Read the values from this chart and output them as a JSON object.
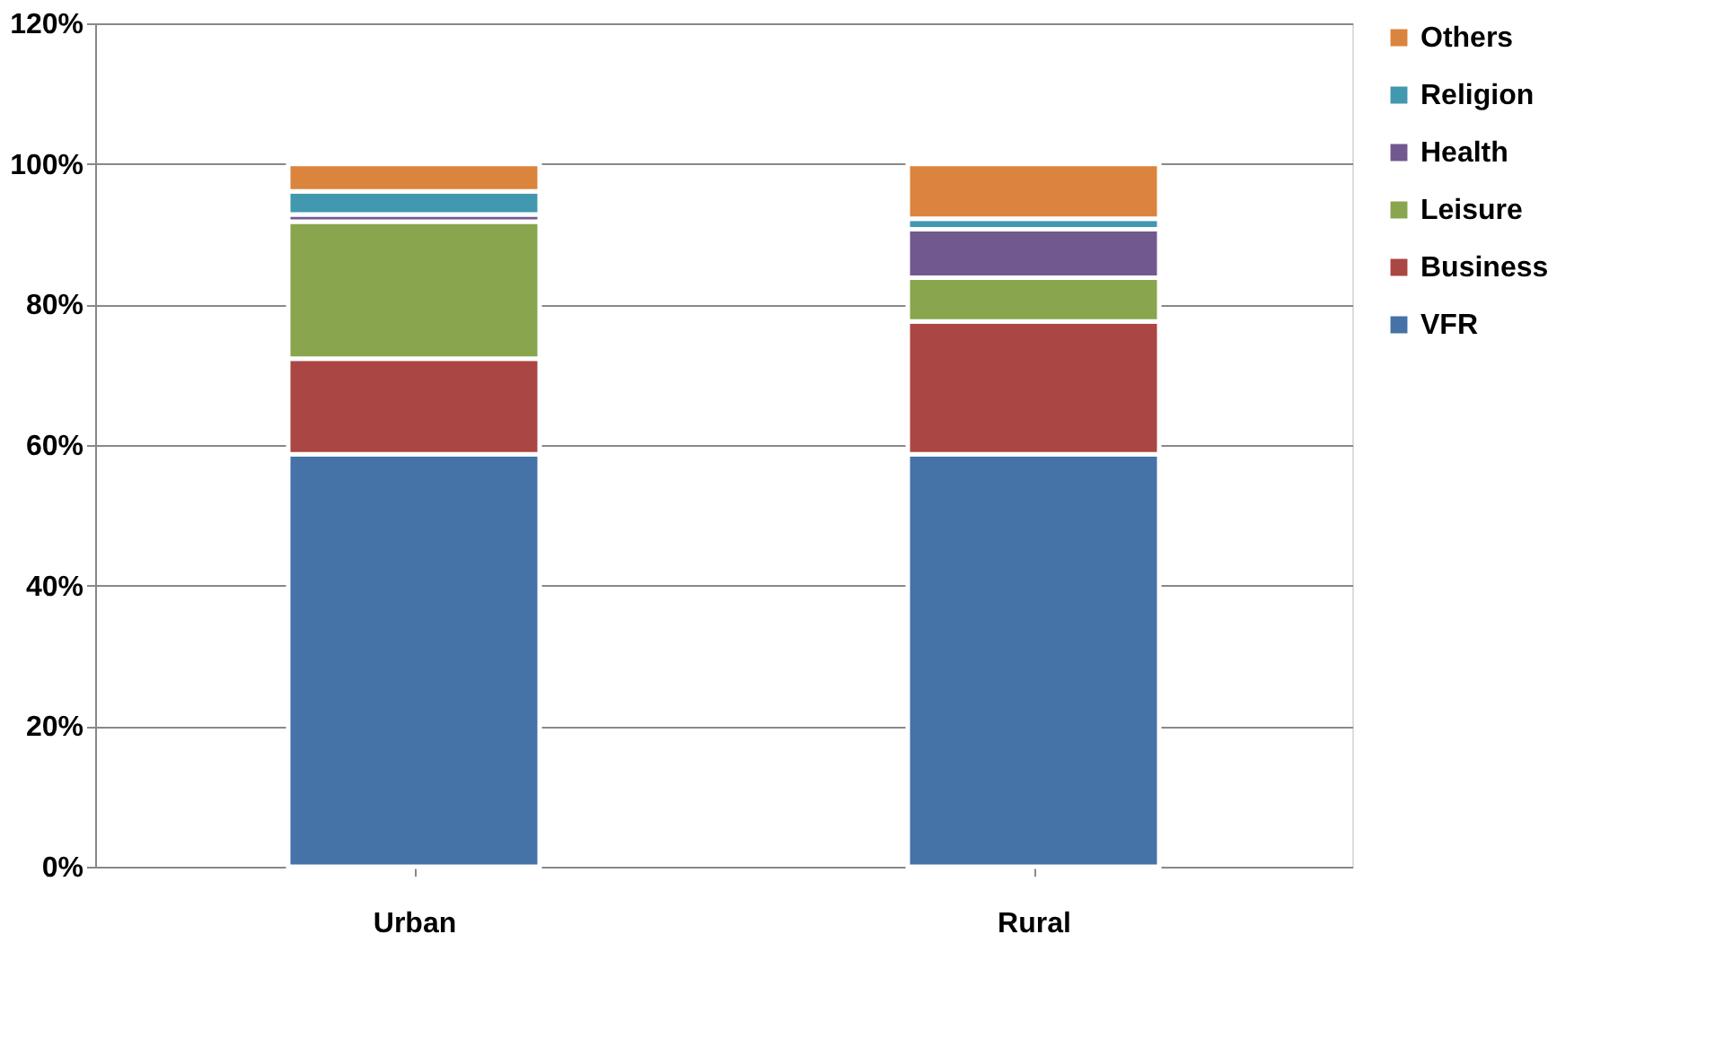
{
  "chart_data": {
    "type": "bar",
    "stacked": true,
    "categories": [
      "Urban",
      "Rural"
    ],
    "series": [
      {
        "name": "VFR",
        "color": "#4572a7",
        "values": [
          58.7,
          58.7
        ]
      },
      {
        "name": "Business",
        "color": "#aa4643",
        "values": [
          13.6,
          18.9
        ]
      },
      {
        "name": "Leisure",
        "color": "#89a54e",
        "values": [
          19.5,
          6.2
        ]
      },
      {
        "name": "Health",
        "color": "#71588f",
        "values": [
          1.0,
          6.9
        ]
      },
      {
        "name": "Religion",
        "color": "#4198af",
        "values": [
          3.3,
          1.5
        ]
      },
      {
        "name": "Others",
        "color": "#db843d",
        "values": [
          3.9,
          7.8
        ]
      }
    ],
    "ylim": [
      0,
      120
    ],
    "yticks": [
      {
        "value": 0,
        "label": "0%"
      },
      {
        "value": 20,
        "label": "20%"
      },
      {
        "value": 40,
        "label": "40%"
      },
      {
        "value": 60,
        "label": "60%"
      },
      {
        "value": 80,
        "label": "80%"
      },
      {
        "value": 100,
        "label": "100%"
      },
      {
        "value": 120,
        "label": "120%"
      }
    ],
    "grid": "y",
    "legend": "right"
  }
}
